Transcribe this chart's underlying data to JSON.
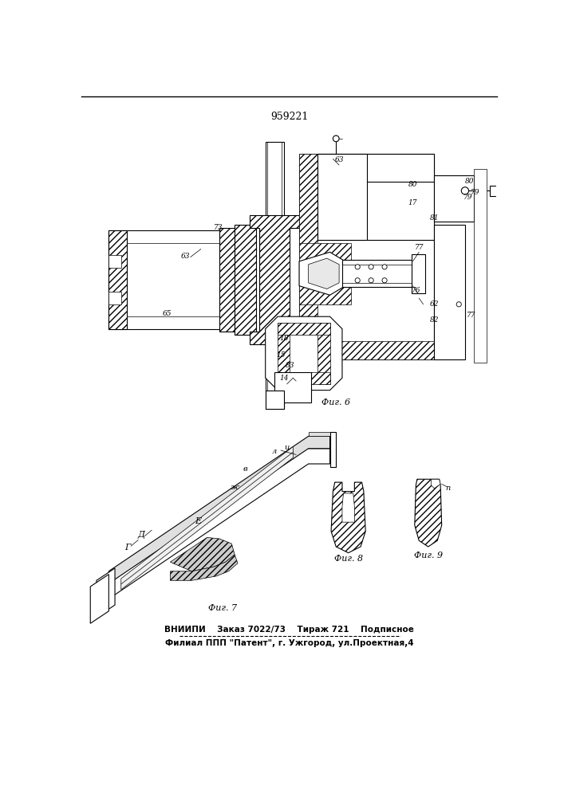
{
  "patent_number": "959221",
  "fig6_label": "Фиг. 6",
  "fig7_label": "Фиг. 7",
  "fig8_label": "Фиг. 8",
  "fig9_label": "Фиг. 9",
  "footer_line1": "ВНИИПИ    Заказ 7022/73    Тираж 721    Подписное",
  "footer_line2": "Филиал ППП \"Патент\", г. Ужгород, ул.Проектная,4",
  "bg_color": "#ffffff",
  "line_color": "#000000"
}
